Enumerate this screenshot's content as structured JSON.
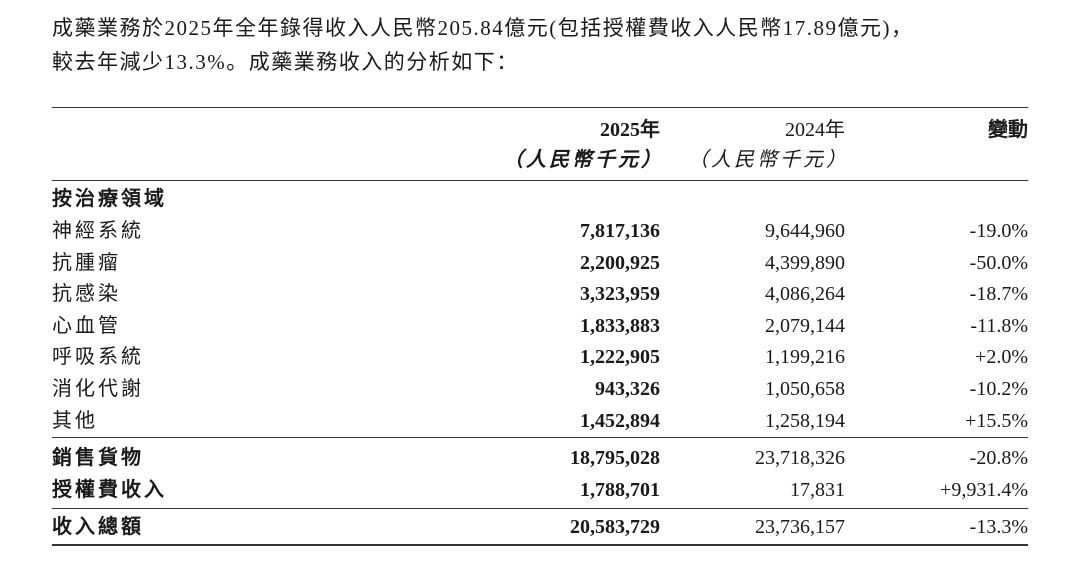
{
  "intro": [
    "成藥業務於2025年全年錄得收入人民幣205.84億元(包括授權費收入人民幣17.89億元)，",
    "較去年減少13.3%。成藥業務收入的分析如下："
  ],
  "table": {
    "header": {
      "columns": [
        "2025年",
        "2024年",
        "變動"
      ],
      "units": [
        "（人民幣千元）",
        "（人民幣千元）"
      ]
    },
    "section": "按治療領域",
    "rows": [
      [
        "神經系統",
        "7,817,136",
        "9,644,960",
        "-19.0%"
      ],
      [
        "抗腫瘤",
        "2,200,925",
        "4,399,890",
        "-50.0%"
      ],
      [
        "抗感染",
        "3,323,959",
        "4,086,264",
        "-18.7%"
      ],
      [
        "心血管",
        "1,833,883",
        "2,079,144",
        "-11.8%"
      ],
      [
        "呼吸系統",
        "1,222,905",
        "1,199,216",
        "+2.0%"
      ],
      [
        "消化代謝",
        "943,326",
        "1,050,658",
        "-10.2%"
      ],
      [
        "其他",
        "1,452,894",
        "1,258,194",
        "+15.5%"
      ]
    ],
    "subtotals": [
      [
        "銷售貨物",
        "18,795,028",
        "23,718,326",
        "-20.8%"
      ],
      [
        "授權費收入",
        "1,788,701",
        "17,831",
        "+9,931.4%"
      ]
    ],
    "total": [
      "收入總額",
      "20,583,729",
      "23,736,157",
      "-13.3%"
    ]
  }
}
